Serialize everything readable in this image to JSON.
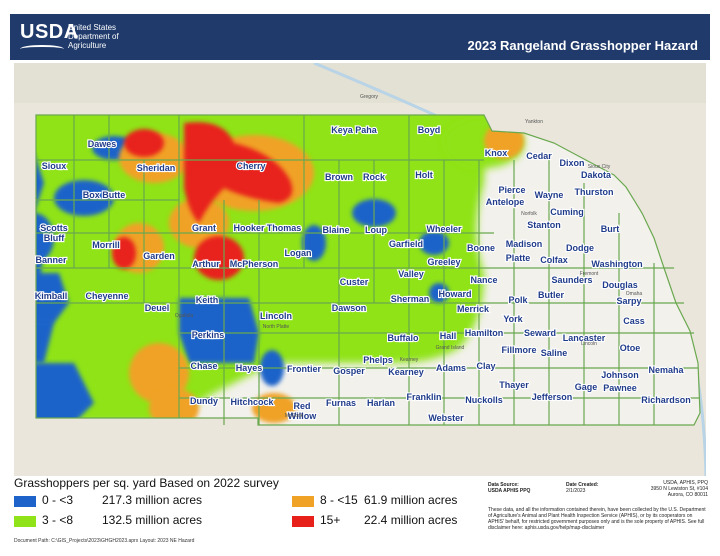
{
  "header": {
    "logo_text": "USDA",
    "agency_lines": [
      "United States",
      "Department of",
      "Agriculture"
    ],
    "title": "2023 Rangeland Grasshopper Hazard"
  },
  "colors": {
    "header_bg": "#1f3a6b",
    "class_0_3": "#1e63c9",
    "class_3_8": "#8fe318",
    "class_8_15": "#f0a226",
    "class_15_plus": "#e8201a",
    "county_border": "#6aa84f",
    "label": "#1f3b8a"
  },
  "map": {
    "counties": [
      "Sioux",
      "Dawes",
      "Sheridan",
      "Cherry",
      "Keya Paha",
      "Boyd",
      "Knox",
      "Box Butte",
      "Brown",
      "Rock",
      "Holt",
      "Cedar",
      "Dixon",
      "Dakota",
      "Thurston",
      "Pierce",
      "Wayne",
      "Antelope",
      "Cuming",
      "Stanton",
      "Scotts Bluff",
      "Grant",
      "Hooker",
      "Thomas",
      "Blaine",
      "Loup",
      "Garfield",
      "Wheeler",
      "Burt",
      "Boone",
      "Madison",
      "Dodge",
      "Banner",
      "Morrill",
      "Garden",
      "Arthur",
      "McPherson",
      "Logan",
      "Greeley",
      "Platte",
      "Colfax",
      "Washington",
      "Valley",
      "Nance",
      "Saunders",
      "Douglas",
      "Kimball",
      "Cheyenne",
      "Keith",
      "Custer",
      "Sherman",
      "Howard",
      "Merrick",
      "Polk",
      "Butler",
      "Sarpy",
      "Deuel",
      "Lincoln",
      "Perkins",
      "Dawson",
      "Buffalo",
      "Hall",
      "Hamilton",
      "York",
      "Seward",
      "Lancaster",
      "Cass",
      "Chase",
      "Hayes",
      "Frontier",
      "Gosper",
      "Phelps",
      "Kearney",
      "Adams",
      "Clay",
      "Fillmore",
      "Saline",
      "Otoe",
      "Thayer",
      "Johnson",
      "Nemaha",
      "Gage",
      "Pawnee",
      "Dundy",
      "Hitchcock",
      "Red Willow",
      "Furnas",
      "Harlan",
      "Franklin",
      "Nuckolls",
      "Jefferson",
      "Richardson",
      "Webster"
    ],
    "places": [
      "Gregory",
      "Yankton",
      "Sioux City",
      "Norfolk",
      "Fremont",
      "Omaha",
      "Lincoln",
      "Grand Island",
      "Kearney",
      "North Platte",
      "Ogallala",
      "McCook"
    ]
  },
  "legend": {
    "title": "Grasshoppers per sq. yard Based on 2022 survey",
    "items": [
      {
        "range": "0 - <3",
        "acres": "217.3 million acres",
        "color": "#1e63c9"
      },
      {
        "range": "3 - <8",
        "acres": "132.5 million acres",
        "color": "#8fe318"
      },
      {
        "range": "8 - <15",
        "acres": "61.9 million acres",
        "color": "#f0a226"
      },
      {
        "range": "15+",
        "acres": "22.4 million acres",
        "color": "#e8201a"
      }
    ]
  },
  "info": {
    "source_label": "Data Source:",
    "source_value": "USDA APHIS PPQ",
    "created_label": "Date Created:",
    "created_value": "2/1/2023",
    "address": [
      "USDA, APHIS, PPQ",
      "3950 N Lewiston St, #104",
      "Aurora, CO 80011"
    ],
    "disclaimer": "These data, and all the information contained therein, have been collected by the U.S. Department of Agriculture's Animal and Plant Health Inspection Service (APHIS), or by its cooperators on APHIS' behalf, for restricted government purposes only and is the sole property of APHIS. See full disclaimer here: aphis.usda.gov/help/map-disclaimer"
  },
  "doc_path": "Document Path: C:\\GIS_Projects\\2023\\GHGH2023.aprx Layout: 2023 NE Hazard"
}
